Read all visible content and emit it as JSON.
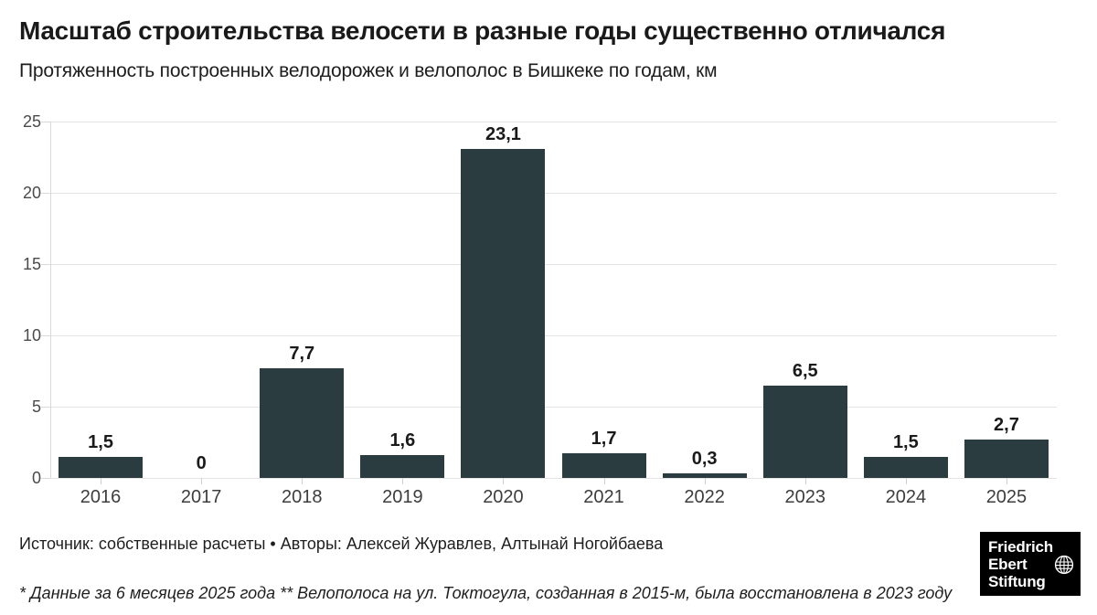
{
  "header": {
    "title": "Масштаб строительства велосети в разные годы существенно отличался",
    "subtitle": "Протяженность построенных велодорожек и велополос в Бишкеке по годам, км"
  },
  "chart_data": {
    "type": "bar",
    "categories": [
      "2016",
      "2017",
      "2018",
      "2019",
      "2020",
      "2021",
      "2022",
      "2023",
      "2024",
      "2025"
    ],
    "values": [
      1.5,
      0,
      7.7,
      1.6,
      23.1,
      1.7,
      0.3,
      6.5,
      1.5,
      2.7
    ],
    "value_labels": [
      "1,5",
      "0",
      "7,7",
      "1,6",
      "23,1",
      "1,7",
      "0,3",
      "6,5",
      "1,5",
      "2,7"
    ],
    "title": "Протяженность построенных велодорожек и велополос в Бишкеке по годам, км",
    "xlabel": "",
    "ylabel": "км",
    "ylim": [
      0,
      25
    ],
    "yticks": [
      0,
      5,
      10,
      15,
      20,
      25
    ],
    "grid": true,
    "legend": "none",
    "bar_color": "#2a3c3f"
  },
  "footer": {
    "source_line": "Источник: собственные расчеты • Авторы: Алексей Журавлев, Алтынай Ногойбаева",
    "footnote": "* Данные за 6 месяцев 2025 года ** Велополоса на ул. Токтогула, созданная в 2015-м, была восстановлена в 2023 году"
  },
  "logo": {
    "name": "Friedrich Ebert Stiftung",
    "lines": [
      "Friedrich",
      "Ebert",
      "Stiftung"
    ],
    "bg_color": "#000000",
    "text_color": "#ffffff"
  }
}
